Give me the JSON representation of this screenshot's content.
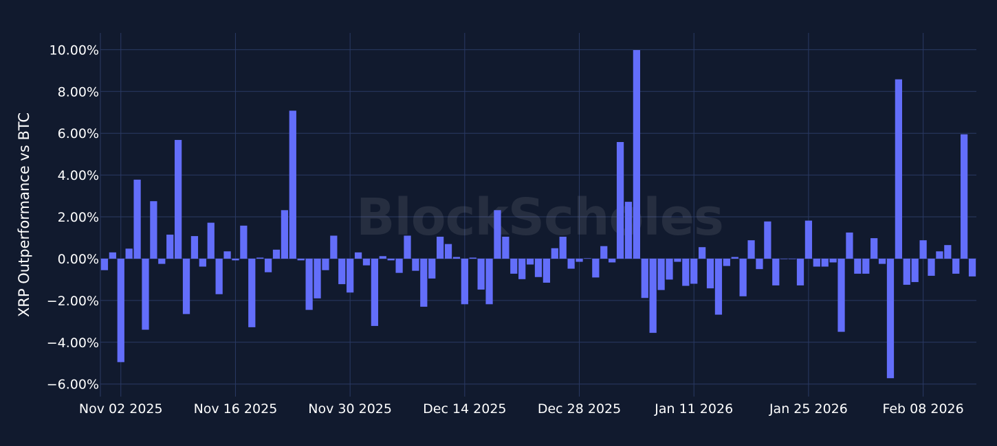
{
  "chart_data": {
    "type": "bar",
    "ylabel": "XRP Outperformance vs BTC",
    "xlabel": "",
    "title": "",
    "watermark": "BlockScholes",
    "x_start": "2025-10-31",
    "values": [
      -0.55,
      0.3,
      -4.95,
      0.48,
      3.78,
      -3.4,
      2.75,
      -0.25,
      1.15,
      5.68,
      -2.65,
      1.08,
      -0.38,
      1.72,
      -1.7,
      0.35,
      -0.08,
      1.58,
      -3.28,
      0.05,
      -0.65,
      0.43,
      2.32,
      7.08,
      -0.08,
      -2.45,
      -1.9,
      -0.55,
      1.1,
      -1.22,
      -1.62,
      0.3,
      -0.32,
      -3.22,
      0.12,
      -0.08,
      -0.68,
      1.1,
      -0.58,
      -2.3,
      -0.95,
      1.05,
      0.7,
      0.08,
      -2.18,
      0.05,
      -1.48,
      -2.18,
      2.32,
      1.05,
      -0.72,
      -0.98,
      -0.28,
      -0.88,
      -1.15,
      0.5,
      1.05,
      -0.48,
      -0.15,
      0.02,
      -0.9,
      0.6,
      -0.18,
      5.58,
      2.72,
      9.98,
      -1.88,
      -3.55,
      -1.5,
      -1.0,
      -0.15,
      -1.3,
      -1.2,
      0.55,
      -1.42,
      -2.68,
      -0.35,
      0.08,
      -1.8,
      0.88,
      -0.5,
      1.78,
      -1.28,
      0.0,
      -0.02,
      -1.28,
      1.82,
      -0.38,
      -0.38,
      -0.18,
      -3.5,
      1.25,
      -0.72,
      -0.72,
      0.98,
      -0.25,
      -5.72,
      8.58,
      -1.25,
      -1.12,
      0.88,
      -0.82,
      0.35,
      0.65,
      -0.72,
      5.95,
      -0.85
    ],
    "x_ticks": [
      {
        "date": "2025-11-02",
        "label": "Nov 02 2025"
      },
      {
        "date": "2025-11-16",
        "label": "Nov 16 2025"
      },
      {
        "date": "2025-11-30",
        "label": "Nov 30 2025"
      },
      {
        "date": "2025-12-14",
        "label": "Dec 14 2025"
      },
      {
        "date": "2025-12-28",
        "label": "Dec 28 2025"
      },
      {
        "date": "2026-01-11",
        "label": "Jan 11 2026"
      },
      {
        "date": "2026-01-25",
        "label": "Jan 25 2026"
      },
      {
        "date": "2026-02-08",
        "label": "Feb 08 2026"
      }
    ],
    "y_ticks": [
      {
        "value": 10,
        "label": "10.00%"
      },
      {
        "value": 8,
        "label": "8.00%"
      },
      {
        "value": 6,
        "label": "6.00%"
      },
      {
        "value": 4,
        "label": "4.00%"
      },
      {
        "value": 2,
        "label": "2.00%"
      },
      {
        "value": 0,
        "label": "0.00%"
      },
      {
        "value": -2,
        "label": "−2.00%"
      },
      {
        "value": -4,
        "label": "−4.00%"
      },
      {
        "value": -6,
        "label": "−6.00%"
      }
    ],
    "ylim": [
      -6.6,
      10.8
    ],
    "grid": true,
    "colors": {
      "bar": "#636efa",
      "background": "#111a2e",
      "grid": "#2a3a64",
      "text": "#ffffff"
    }
  }
}
